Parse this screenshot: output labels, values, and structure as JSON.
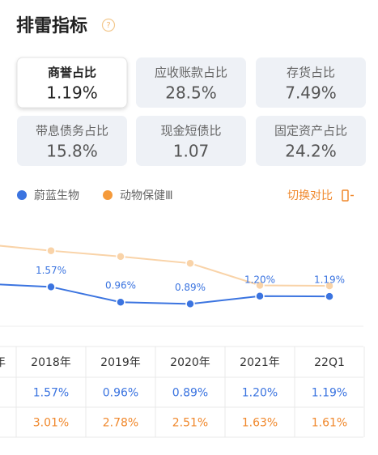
{
  "header": {
    "title": "排雷指标",
    "help": "?"
  },
  "cards": [
    {
      "label": "商誉占比",
      "value": "1.19%",
      "selected": true
    },
    {
      "label": "应收账款占比",
      "value": "28.5%"
    },
    {
      "label": "存货占比",
      "value": "7.49%"
    },
    {
      "label": "带息债务占比",
      "value": "15.8%"
    },
    {
      "label": "现金短债比",
      "value": "1.07"
    },
    {
      "label": "固定资产占比",
      "value": "24.2%"
    }
  ],
  "switch_label": "切换对比",
  "chart_data": {
    "type": "line",
    "categories": [
      null,
      "2018年",
      "2019年",
      "2020年",
      "2021年",
      "22Q1"
    ],
    "ylim": [
      0,
      4
    ],
    "series": [
      {
        "name": "蔚蓝生物",
        "color": "#3b74e0",
        "line_color": "#3b74e0",
        "values": [
          1.7,
          1.57,
          0.96,
          0.89,
          1.2,
          1.19
        ],
        "value_labels": [
          null,
          "1.57%",
          "0.96%",
          "0.89%",
          "1.20%",
          "1.19%"
        ]
      },
      {
        "name": "动物保健Ⅲ",
        "color": "#f59a3a",
        "line_color": "#f9d3a8",
        "values": [
          3.28,
          3.01,
          2.78,
          2.51,
          1.63,
          1.61
        ]
      }
    ]
  },
  "table": {
    "header": [
      "年",
      "2018年",
      "2019年",
      "2020年",
      "2021年",
      "22Q1"
    ],
    "rows": [
      {
        "color": "#3b74e0",
        "cells": [
          "1.57%",
          "0.96%",
          "0.89%",
          "1.20%",
          "1.19%"
        ]
      },
      {
        "color": "#f0882c",
        "cells": [
          "3.01%",
          "2.78%",
          "2.51%",
          "1.63%",
          "1.61%"
        ]
      }
    ]
  }
}
